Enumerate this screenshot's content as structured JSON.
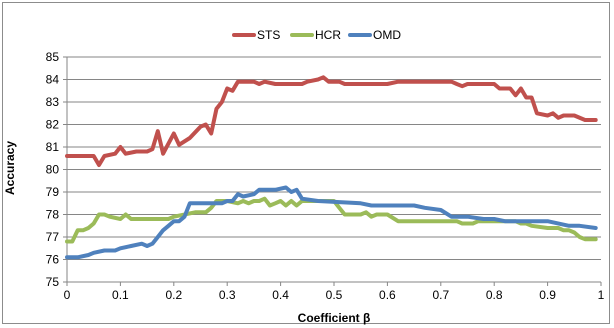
{
  "chart_data": {
    "type": "line",
    "title": "",
    "xlabel": "Coefficient β",
    "ylabel": "Accuracy",
    "xlim": [
      0,
      1
    ],
    "ylim": [
      75,
      85
    ],
    "x_ticks": [
      "0",
      "0.1",
      "0.2",
      "0.3",
      "0.4",
      "0.5",
      "0.6",
      "0.7",
      "0.8",
      "0.9",
      "1"
    ],
    "y_ticks": [
      "75",
      "76",
      "77",
      "78",
      "79",
      "80",
      "81",
      "82",
      "83",
      "84",
      "85"
    ],
    "grid": "horizontal",
    "legend_position": "top",
    "series": [
      {
        "name": "STS",
        "color": "#c0504d",
        "points": [
          [
            0,
            80.6
          ],
          [
            0.05,
            80.6
          ],
          [
            0.06,
            80.2
          ],
          [
            0.07,
            80.6
          ],
          [
            0.09,
            80.7
          ],
          [
            0.1,
            81.0
          ],
          [
            0.11,
            80.7
          ],
          [
            0.13,
            80.8
          ],
          [
            0.15,
            80.8
          ],
          [
            0.16,
            80.9
          ],
          [
            0.17,
            81.7
          ],
          [
            0.18,
            80.7
          ],
          [
            0.2,
            81.6
          ],
          [
            0.21,
            81.1
          ],
          [
            0.23,
            81.4
          ],
          [
            0.25,
            81.9
          ],
          [
            0.26,
            82.0
          ],
          [
            0.27,
            81.6
          ],
          [
            0.28,
            82.7
          ],
          [
            0.29,
            83.0
          ],
          [
            0.3,
            83.6
          ],
          [
            0.31,
            83.5
          ],
          [
            0.32,
            83.9
          ],
          [
            0.35,
            83.9
          ],
          [
            0.36,
            83.8
          ],
          [
            0.37,
            83.9
          ],
          [
            0.39,
            83.8
          ],
          [
            0.44,
            83.8
          ],
          [
            0.45,
            83.9
          ],
          [
            0.47,
            84.0
          ],
          [
            0.48,
            84.1
          ],
          [
            0.49,
            83.9
          ],
          [
            0.51,
            83.9
          ],
          [
            0.52,
            83.8
          ],
          [
            0.6,
            83.8
          ],
          [
            0.62,
            83.9
          ],
          [
            0.72,
            83.9
          ],
          [
            0.73,
            83.8
          ],
          [
            0.74,
            83.7
          ],
          [
            0.75,
            83.8
          ],
          [
            0.8,
            83.8
          ],
          [
            0.81,
            83.6
          ],
          [
            0.83,
            83.6
          ],
          [
            0.84,
            83.3
          ],
          [
            0.85,
            83.6
          ],
          [
            0.86,
            83.2
          ],
          [
            0.87,
            83.2
          ],
          [
            0.88,
            82.5
          ],
          [
            0.9,
            82.4
          ],
          [
            0.91,
            82.5
          ],
          [
            0.92,
            82.3
          ],
          [
            0.93,
            82.4
          ],
          [
            0.95,
            82.4
          ],
          [
            0.97,
            82.2
          ],
          [
            0.99,
            82.2
          ]
        ]
      },
      {
        "name": "HCR",
        "color": "#9bbb59",
        "points": [
          [
            0,
            76.8
          ],
          [
            0.01,
            76.8
          ],
          [
            0.02,
            77.3
          ],
          [
            0.03,
            77.3
          ],
          [
            0.04,
            77.4
          ],
          [
            0.05,
            77.6
          ],
          [
            0.06,
            78.0
          ],
          [
            0.07,
            78.0
          ],
          [
            0.08,
            77.9
          ],
          [
            0.1,
            77.8
          ],
          [
            0.11,
            78.0
          ],
          [
            0.12,
            77.8
          ],
          [
            0.19,
            77.8
          ],
          [
            0.2,
            77.9
          ],
          [
            0.24,
            78.1
          ],
          [
            0.26,
            78.1
          ],
          [
            0.27,
            78.3
          ],
          [
            0.28,
            78.6
          ],
          [
            0.3,
            78.6
          ],
          [
            0.32,
            78.5
          ],
          [
            0.33,
            78.6
          ],
          [
            0.34,
            78.5
          ],
          [
            0.35,
            78.6
          ],
          [
            0.36,
            78.6
          ],
          [
            0.37,
            78.7
          ],
          [
            0.38,
            78.4
          ],
          [
            0.39,
            78.5
          ],
          [
            0.4,
            78.6
          ],
          [
            0.41,
            78.4
          ],
          [
            0.42,
            78.6
          ],
          [
            0.43,
            78.4
          ],
          [
            0.44,
            78.6
          ],
          [
            0.5,
            78.6
          ],
          [
            0.51,
            78.3
          ],
          [
            0.52,
            78.0
          ],
          [
            0.55,
            78.0
          ],
          [
            0.56,
            78.1
          ],
          [
            0.57,
            77.9
          ],
          [
            0.58,
            78.0
          ],
          [
            0.6,
            78.0
          ],
          [
            0.62,
            77.7
          ],
          [
            0.73,
            77.7
          ],
          [
            0.74,
            77.6
          ],
          [
            0.76,
            77.6
          ],
          [
            0.77,
            77.7
          ],
          [
            0.84,
            77.7
          ],
          [
            0.85,
            77.6
          ],
          [
            0.86,
            77.6
          ],
          [
            0.87,
            77.5
          ],
          [
            0.9,
            77.4
          ],
          [
            0.92,
            77.4
          ],
          [
            0.93,
            77.3
          ],
          [
            0.94,
            77.3
          ],
          [
            0.95,
            77.2
          ],
          [
            0.96,
            77.0
          ],
          [
            0.97,
            76.9
          ],
          [
            0.99,
            76.9
          ]
        ]
      },
      {
        "name": "OMD",
        "color": "#4f81bd",
        "points": [
          [
            0,
            76.1
          ],
          [
            0.02,
            76.1
          ],
          [
            0.04,
            76.2
          ],
          [
            0.05,
            76.3
          ],
          [
            0.07,
            76.4
          ],
          [
            0.09,
            76.4
          ],
          [
            0.1,
            76.5
          ],
          [
            0.12,
            76.6
          ],
          [
            0.14,
            76.7
          ],
          [
            0.15,
            76.6
          ],
          [
            0.16,
            76.7
          ],
          [
            0.17,
            77.0
          ],
          [
            0.18,
            77.3
          ],
          [
            0.19,
            77.5
          ],
          [
            0.2,
            77.7
          ],
          [
            0.21,
            77.7
          ],
          [
            0.22,
            77.9
          ],
          [
            0.23,
            78.5
          ],
          [
            0.24,
            78.5
          ],
          [
            0.29,
            78.5
          ],
          [
            0.3,
            78.6
          ],
          [
            0.31,
            78.6
          ],
          [
            0.32,
            78.9
          ],
          [
            0.33,
            78.8
          ],
          [
            0.35,
            78.9
          ],
          [
            0.36,
            79.1
          ],
          [
            0.39,
            79.1
          ],
          [
            0.41,
            79.2
          ],
          [
            0.42,
            79.0
          ],
          [
            0.43,
            79.1
          ],
          [
            0.44,
            78.7
          ],
          [
            0.47,
            78.6
          ],
          [
            0.55,
            78.5
          ],
          [
            0.57,
            78.4
          ],
          [
            0.65,
            78.4
          ],
          [
            0.67,
            78.3
          ],
          [
            0.7,
            78.2
          ],
          [
            0.72,
            77.9
          ],
          [
            0.75,
            77.9
          ],
          [
            0.78,
            77.8
          ],
          [
            0.8,
            77.8
          ],
          [
            0.82,
            77.7
          ],
          [
            0.9,
            77.7
          ],
          [
            0.94,
            77.5
          ],
          [
            0.96,
            77.5
          ],
          [
            0.99,
            77.4
          ]
        ]
      }
    ]
  }
}
